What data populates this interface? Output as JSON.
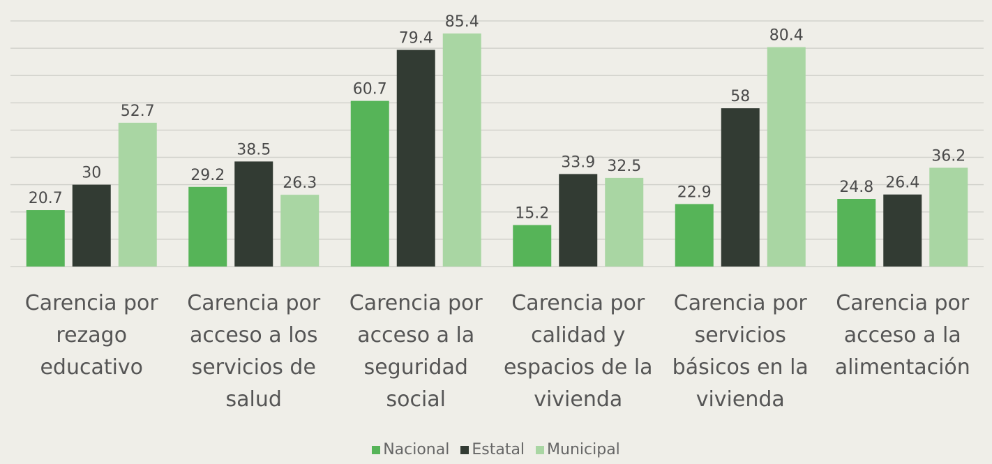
{
  "chart_data": {
    "type": "bar",
    "categories": [
      "Carencia por rezago educativo",
      "Carencia por acceso a los servicios de salud",
      "Carencia por acceso a la seguridad social",
      "Carencia por calidad y espacios de la vivienda",
      "Carencia por servicios básicos en la vivienda",
      "Carencia por acceso a la alimentación"
    ],
    "series": [
      {
        "name": "Nacional",
        "color": "#56b458",
        "values": [
          20.7,
          29.2,
          60.7,
          15.2,
          22.9,
          24.8
        ]
      },
      {
        "name": "Estatal",
        "color": "#323b33",
        "values": [
          30,
          38.5,
          79.4,
          33.9,
          58,
          26.4
        ]
      },
      {
        "name": "Municipal",
        "color": "#a9d6a3",
        "values": [
          52.7,
          26.3,
          85.4,
          32.5,
          80.4,
          36.2
        ]
      }
    ],
    "ylim": [
      0,
      90
    ],
    "yticks": [
      0,
      10,
      20,
      30,
      40,
      50,
      60,
      70,
      80,
      90
    ],
    "grid": true,
    "legend": "bottom"
  }
}
